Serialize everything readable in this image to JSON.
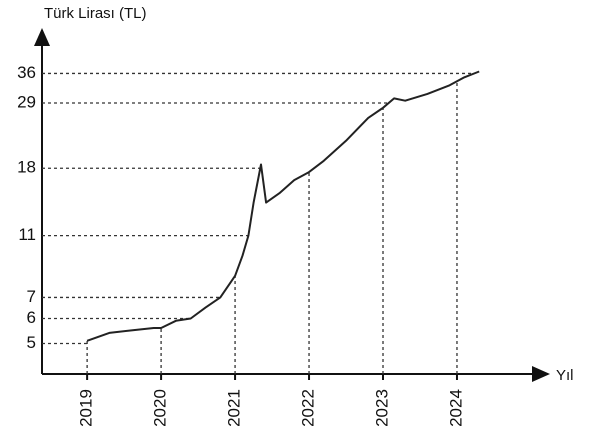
{
  "chart_data": {
    "type": "line",
    "y_label": "Türk Lirası (TL)",
    "x_label": "Yıl",
    "x": [
      2019.0,
      2019.3,
      2019.6,
      2019.9,
      2020.0,
      2020.2,
      2020.4,
      2020.6,
      2020.8,
      2021.0,
      2021.1,
      2021.18,
      2021.25,
      2021.35,
      2021.42,
      2021.6,
      2021.8,
      2022.0,
      2022.2,
      2022.5,
      2022.8,
      2023.0,
      2023.15,
      2023.3,
      2023.6,
      2023.9,
      2024.1,
      2024.3
    ],
    "series": [
      {
        "color": "#222222",
        "values": [
          5.1,
          5.4,
          5.5,
          5.6,
          5.6,
          5.9,
          6.0,
          6.5,
          7.0,
          8.2,
          9.5,
          11,
          14,
          18.5,
          14,
          15,
          16.5,
          17.5,
          19,
          22,
          26,
          28,
          30,
          29.5,
          31,
          33,
          35,
          36.5
        ]
      }
    ],
    "xlim": [
      2018.39,
      2025.19
    ],
    "xticks": [
      2019,
      2020,
      2021,
      2022,
      2023,
      2024
    ],
    "ylim": [
      4,
      40
    ],
    "yticks": [
      5,
      6,
      7,
      11,
      18,
      29,
      36
    ],
    "yscale": "log",
    "guides": true
  }
}
